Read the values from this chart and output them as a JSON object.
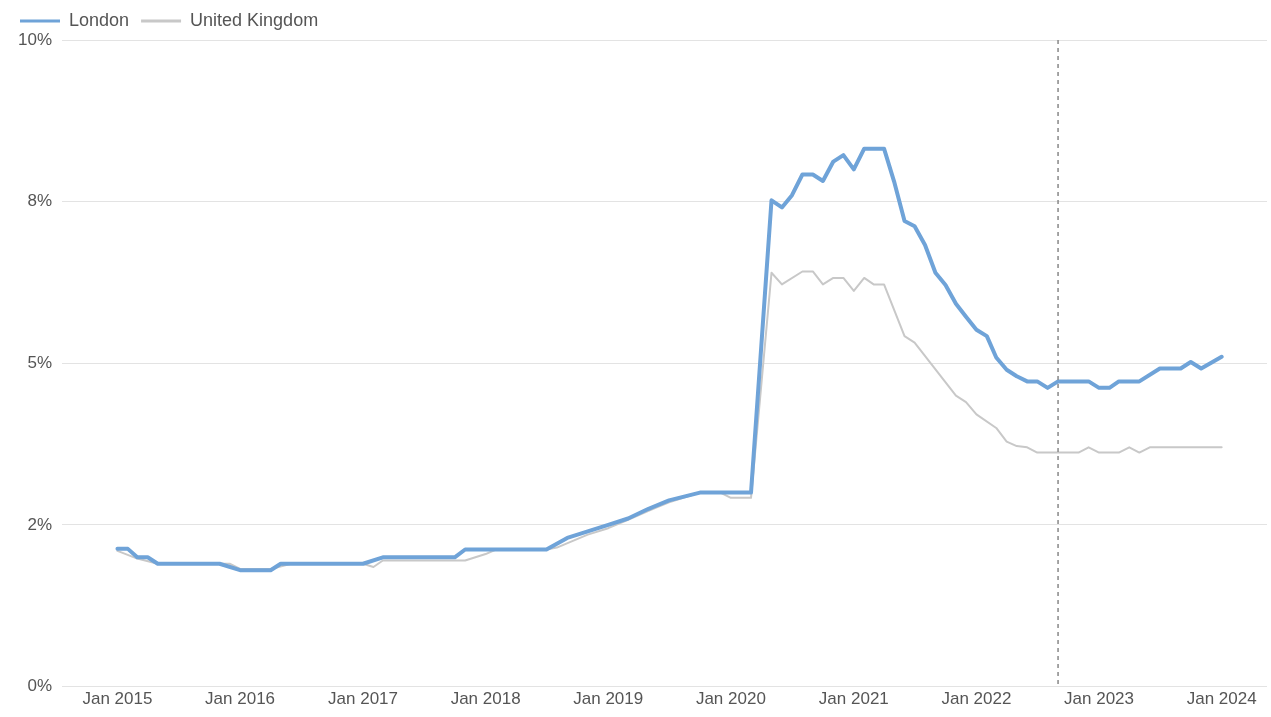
{
  "chart_data": {
    "type": "line",
    "xlim": [
      "2014-07-20",
      "2024-05-15"
    ],
    "xticks": [
      {
        "value": "2015-01",
        "label": "Jan 2015"
      },
      {
        "value": "2016-01",
        "label": "Jan 2016"
      },
      {
        "value": "2017-01",
        "label": "Jan 2017"
      },
      {
        "value": "2018-01",
        "label": "Jan 2018"
      },
      {
        "value": "2019-01",
        "label": "Jan 2019"
      },
      {
        "value": "2020-01",
        "label": "Jan 2020"
      },
      {
        "value": "2021-01",
        "label": "Jan 2021"
      },
      {
        "value": "2022-01",
        "label": "Jan 2022"
      },
      {
        "value": "2023-01",
        "label": "Jan 2023"
      },
      {
        "value": "2024-01",
        "label": "Jan 2024"
      }
    ],
    "ylim": [
      0,
      10
    ],
    "yticks": [
      {
        "value": 0,
        "label": "0%"
      },
      {
        "value": 2.5,
        "label": "2%"
      },
      {
        "value": 5,
        "label": "5%"
      },
      {
        "value": 7.5,
        "label": "8%"
      },
      {
        "value": 10,
        "label": "10%"
      }
    ],
    "grid": "y",
    "legend": "top left",
    "marker": "none",
    "line_style": "solid",
    "ref_lines": [
      {
        "axis": "x",
        "value": "2022-09",
        "color": "#888888",
        "line_style": "dashed"
      }
    ],
    "series": [
      {
        "name": "London",
        "color": "#6fa3d8",
        "x": [
          "2015-01",
          "2015-02",
          "2015-03",
          "2015-04",
          "2015-05",
          "2015-11",
          "2016-01",
          "2016-04",
          "2016-05",
          "2017-01",
          "2017-03",
          "2017-10",
          "2017-11",
          "2018-07",
          "2018-09",
          "2018-11",
          "2019-01",
          "2019-03",
          "2019-05",
          "2019-07",
          "2019-10",
          "2020-03",
          "2020-05",
          "2020-06",
          "2020-07",
          "2020-08",
          "2020-09",
          "2020-10",
          "2020-11",
          "2020-12",
          "2021-01",
          "2021-02",
          "2021-04",
          "2021-05",
          "2021-06",
          "2021-07",
          "2021-08",
          "2021-09",
          "2021-10",
          "2021-11",
          "2021-12",
          "2022-01",
          "2022-02",
          "2022-03",
          "2022-04",
          "2022-05",
          "2022-06",
          "2022-07",
          "2022-08",
          "2022-09",
          "2022-12",
          "2023-01",
          "2023-02",
          "2023-03",
          "2023-05",
          "2023-07",
          "2023-09",
          "2023-10",
          "2023-11",
          "2023-12",
          "2024-01"
        ],
        "values": [
          2.13,
          2.13,
          2.0,
          2.0,
          1.9,
          1.9,
          1.8,
          1.8,
          1.9,
          1.9,
          2.0,
          2.0,
          2.12,
          2.12,
          2.3,
          2.4,
          2.5,
          2.6,
          2.75,
          2.88,
          3.0,
          3.0,
          7.52,
          7.41,
          7.6,
          7.92,
          7.92,
          7.82,
          8.12,
          8.22,
          8.0,
          8.32,
          8.32,
          7.81,
          7.2,
          7.12,
          6.83,
          6.4,
          6.21,
          5.92,
          5.72,
          5.52,
          5.42,
          5.09,
          4.9,
          4.8,
          4.72,
          4.72,
          4.62,
          4.72,
          4.72,
          4.62,
          4.62,
          4.72,
          4.72,
          4.92,
          4.92,
          5.02,
          4.92,
          5.01,
          5.1
        ]
      },
      {
        "name": "United Kingdom",
        "color": "#c8c8c8",
        "x": [
          "2015-01",
          "2015-03",
          "2015-05",
          "2015-12",
          "2016-01",
          "2016-04",
          "2016-06",
          "2017-01",
          "2017-02",
          "2017-03",
          "2017-11",
          "2018-01",
          "2018-02",
          "2018-07",
          "2018-08",
          "2018-11",
          "2019-01",
          "2019-03",
          "2019-05",
          "2019-07",
          "2019-10",
          "2019-12",
          "2020-01",
          "2020-03",
          "2020-05",
          "2020-06",
          "2020-08",
          "2020-09",
          "2020-10",
          "2020-11",
          "2020-12",
          "2021-01",
          "2021-02",
          "2021-03",
          "2021-04",
          "2021-06",
          "2021-07",
          "2021-11",
          "2021-12",
          "2022-01",
          "2022-03",
          "2022-04",
          "2022-05",
          "2022-06",
          "2022-07",
          "2022-11",
          "2022-12",
          "2023-01",
          "2023-03",
          "2023-04",
          "2023-05",
          "2023-06",
          "2024-01"
        ],
        "values": [
          2.1,
          1.98,
          1.9,
          1.9,
          1.82,
          1.82,
          1.9,
          1.9,
          1.85,
          1.95,
          1.95,
          2.05,
          2.12,
          2.12,
          2.15,
          2.35,
          2.45,
          2.58,
          2.72,
          2.85,
          3.0,
          3.0,
          2.92,
          2.92,
          6.4,
          6.22,
          6.42,
          6.42,
          6.22,
          6.32,
          6.32,
          6.12,
          6.32,
          6.22,
          6.22,
          5.42,
          5.32,
          4.5,
          4.4,
          4.21,
          4.0,
          3.79,
          3.72,
          3.7,
          3.62,
          3.62,
          3.7,
          3.62,
          3.62,
          3.7,
          3.62,
          3.7,
          3.7
        ]
      }
    ]
  }
}
